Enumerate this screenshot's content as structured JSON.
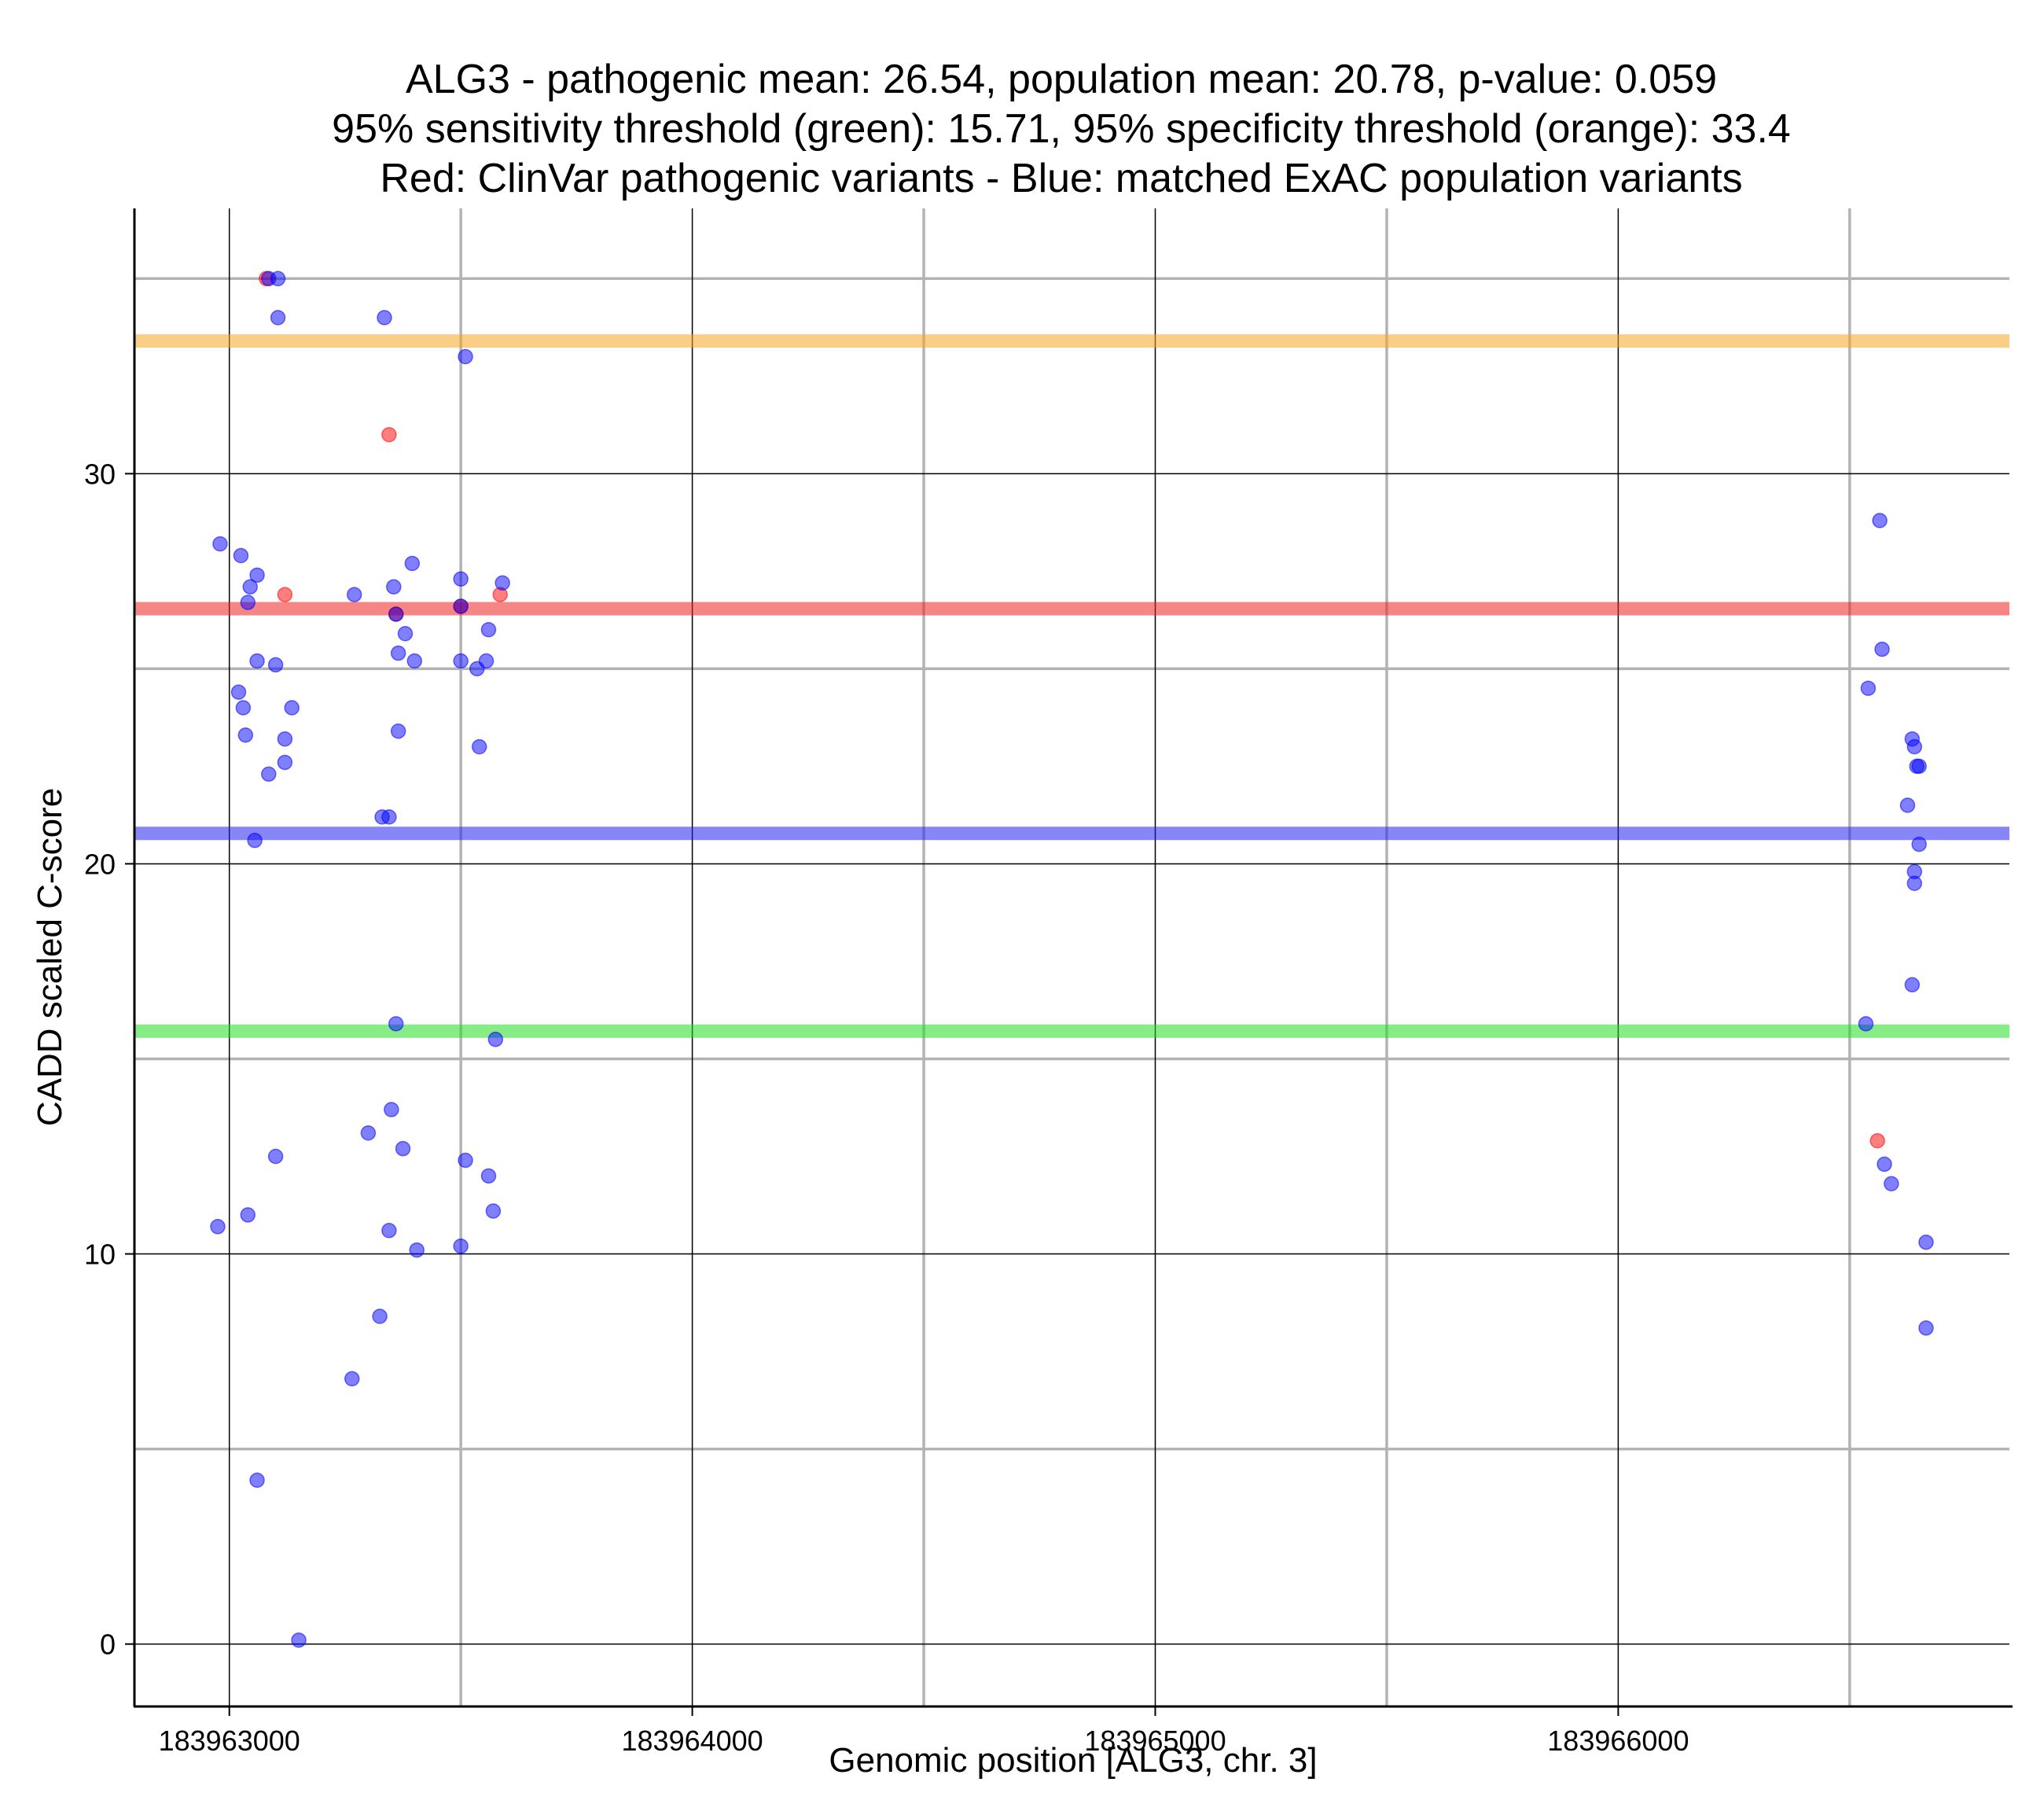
{
  "chart_data": {
    "type": "scatter",
    "title_lines": [
      "ALG3 - pathogenic mean: 26.54, population mean: 20.78, p-value: 0.059",
      "95% sensitivity threshold (green): 15.71, 95% specificity threshold (orange): 33.4",
      "Red: ClinVar pathogenic variants - Blue: matched ExAC population variants"
    ],
    "xlabel": "Genomic position [ALG3, chr. 3]",
    "ylabel": "CADD scaled C-score",
    "xlim": [
      183962795,
      183966845
    ],
    "ylim": [
      -1.6,
      36.8
    ],
    "x_ticks": [
      183963000,
      183964000,
      183965000,
      183966000
    ],
    "x_tick_labels": [
      "183963000",
      "183964000",
      "183965000",
      "183966000"
    ],
    "x_minor_grid": [
      183963500,
      183964500,
      183965500,
      183966500
    ],
    "y_ticks": [
      0,
      10,
      20,
      30
    ],
    "y_tick_labels": [
      "0",
      "10",
      "20",
      "30"
    ],
    "y_minor_grid": [
      5,
      15,
      25,
      35
    ],
    "hlines": [
      {
        "name": "specificity-threshold",
        "value": 33.4,
        "color": "#F5A623"
      },
      {
        "name": "pathogenic-mean",
        "value": 26.54,
        "color": "#EE2222"
      },
      {
        "name": "population-mean",
        "value": 20.78,
        "color": "#2222EE"
      },
      {
        "name": "sensitivity-threshold",
        "value": 15.71,
        "color": "#22DD22"
      }
    ],
    "series": [
      {
        "name": "ClinVar pathogenic variants",
        "color": "#FF0000",
        "points": [
          [
            183963080,
            35.0
          ],
          [
            183963345,
            31.0
          ],
          [
            183963120,
            26.9
          ],
          [
            183963360,
            26.4
          ],
          [
            183963500,
            26.6
          ],
          [
            183963585,
            26.9
          ],
          [
            183966560,
            12.9
          ]
        ]
      },
      {
        "name": "matched ExAC population variants",
        "color": "#0000FF",
        "points": [
          [
            183963085,
            35.0
          ],
          [
            183963105,
            35.0
          ],
          [
            183963105,
            34.0
          ],
          [
            183963335,
            34.0
          ],
          [
            183963510,
            33.0
          ],
          [
            183962980,
            28.2
          ],
          [
            183963025,
            27.9
          ],
          [
            183963060,
            27.4
          ],
          [
            183963045,
            27.1
          ],
          [
            183963040,
            26.7
          ],
          [
            183963020,
            24.4
          ],
          [
            183963030,
            24.0
          ],
          [
            183963035,
            23.3
          ],
          [
            183963060,
            25.2
          ],
          [
            183963100,
            25.1
          ],
          [
            183963135,
            24.0
          ],
          [
            183963120,
            23.2
          ],
          [
            183963120,
            22.6
          ],
          [
            183963085,
            22.3
          ],
          [
            183963055,
            20.6
          ],
          [
            183963270,
            26.9
          ],
          [
            183963355,
            27.1
          ],
          [
            183963395,
            27.7
          ],
          [
            183963360,
            26.4
          ],
          [
            183963380,
            25.9
          ],
          [
            183963365,
            25.4
          ],
          [
            183963400,
            25.2
          ],
          [
            183963365,
            23.4
          ],
          [
            183963330,
            21.2
          ],
          [
            183963345,
            21.2
          ],
          [
            183963500,
            27.3
          ],
          [
            183963500,
            26.6
          ],
          [
            183963500,
            25.2
          ],
          [
            183963535,
            25.0
          ],
          [
            183963555,
            25.2
          ],
          [
            183963560,
            26.0
          ],
          [
            183963590,
            27.2
          ],
          [
            183963540,
            23.0
          ],
          [
            183963360,
            15.9
          ],
          [
            183963575,
            15.5
          ],
          [
            183963350,
            13.7
          ],
          [
            183963300,
            13.1
          ],
          [
            183963375,
            12.7
          ],
          [
            183963100,
            12.5
          ],
          [
            183963510,
            12.4
          ],
          [
            183963560,
            12.0
          ],
          [
            183963570,
            11.1
          ],
          [
            183963040,
            11.0
          ],
          [
            183962975,
            10.7
          ],
          [
            183963345,
            10.6
          ],
          [
            183963405,
            10.1
          ],
          [
            183963500,
            10.2
          ],
          [
            183963325,
            8.4
          ],
          [
            183963265,
            6.8
          ],
          [
            183963060,
            4.2
          ],
          [
            183963150,
            0.1
          ],
          [
            183966565,
            28.8
          ],
          [
            183966570,
            25.5
          ],
          [
            183966540,
            24.5
          ],
          [
            183966635,
            23.2
          ],
          [
            183966640,
            23.0
          ],
          [
            183966645,
            22.5
          ],
          [
            183966650,
            22.5
          ],
          [
            183966625,
            21.5
          ],
          [
            183966650,
            20.5
          ],
          [
            183966640,
            19.8
          ],
          [
            183966640,
            19.5
          ],
          [
            183966635,
            16.9
          ],
          [
            183966535,
            15.9
          ],
          [
            183966575,
            12.3
          ],
          [
            183966590,
            11.8
          ],
          [
            183966665,
            10.3
          ],
          [
            183966665,
            8.1
          ]
        ]
      }
    ]
  }
}
